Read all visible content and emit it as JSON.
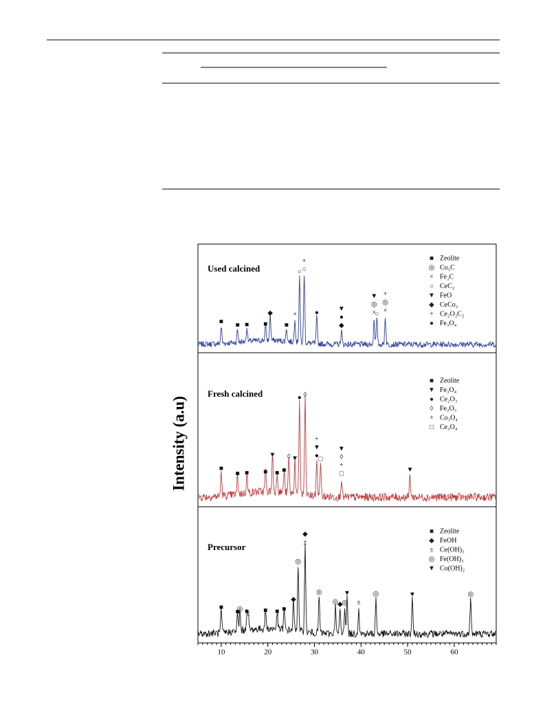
{
  "figure": {
    "ylabel": "Intensity (a.u)",
    "xlim": [
      5,
      69
    ],
    "xticks": [
      10,
      20,
      30,
      40,
      50,
      60
    ],
    "panels": [
      {
        "title": "Used calcined",
        "color": "#2f3d9c",
        "legend": [
          {
            "marker": "■",
            "label": "Zeolite"
          },
          {
            "marker": "◎",
            "label": "Co₃C"
          },
          {
            "marker": "×",
            "label": "Fe₃C"
          },
          {
            "marker": "○",
            "label": "CeC₂"
          },
          {
            "marker": "▼",
            "label": "FeO"
          },
          {
            "marker": "◆",
            "label": "CeCo₂"
          },
          {
            "marker": "+",
            "label": "Ce₂O₂C₂"
          },
          {
            "marker": "●",
            "label": "Fe₃O₄"
          }
        ],
        "markers": [
          {
            "x": 10,
            "legend": 0
          },
          {
            "x": 13.5,
            "legend": 0
          },
          {
            "x": 15.5,
            "legend": 0
          },
          {
            "x": 19.5,
            "legend": 0
          },
          {
            "x": 24,
            "legend": 0
          },
          {
            "x": 20.5,
            "legend": 5
          },
          {
            "x": 25.8,
            "legend": 6
          },
          {
            "x": 26.8,
            "legend": 3
          },
          {
            "x": 27.8,
            "legend": 3
          },
          {
            "x": 27.8,
            "legend": 6
          },
          {
            "x": 30.5,
            "legend": 7
          },
          {
            "x": 35.8,
            "legend": 5
          },
          {
            "x": 35.8,
            "legend": 7
          },
          {
            "x": 35.8,
            "legend": 4
          },
          {
            "x": 42.8,
            "legend": 2
          },
          {
            "x": 42.8,
            "legend": 1
          },
          {
            "x": 42.8,
            "legend": 4
          },
          {
            "x": 45.2,
            "legend": 2
          },
          {
            "x": 45.2,
            "legend": 1
          },
          {
            "x": 45.2,
            "legend": 6
          },
          {
            "x": 43.4,
            "legend": 3
          }
        ]
      },
      {
        "title": "Fresh calcined",
        "color": "#c03a3c",
        "legend": [
          {
            "marker": "■",
            "label": "Zeolite"
          },
          {
            "marker": "▼",
            "label": "Fe₃O₄"
          },
          {
            "marker": "●",
            "label": "Ce₂O₃"
          },
          {
            "marker": "◊",
            "label": "Fe₂O₃"
          },
          {
            "marker": "+",
            "label": "Co₃O₄"
          },
          {
            "marker": "□",
            "label": "Ce₃O₄"
          }
        ],
        "markers": [
          {
            "x": 10,
            "legend": 0
          },
          {
            "x": 13.5,
            "legend": 0
          },
          {
            "x": 15.5,
            "legend": 0
          },
          {
            "x": 19.5,
            "legend": 0
          },
          {
            "x": 22,
            "legend": 0
          },
          {
            "x": 23.5,
            "legend": 0
          },
          {
            "x": 21,
            "legend": 1
          },
          {
            "x": 24.5,
            "legend": 3
          },
          {
            "x": 25.8,
            "legend": 1
          },
          {
            "x": 26.8,
            "legend": 2
          },
          {
            "x": 28,
            "legend": 3
          },
          {
            "x": 30.5,
            "legend": 2
          },
          {
            "x": 30.5,
            "legend": 1
          },
          {
            "x": 30.5,
            "legend": 4
          },
          {
            "x": 31.3,
            "legend": 5
          },
          {
            "x": 35.8,
            "legend": 5
          },
          {
            "x": 35.8,
            "legend": 4
          },
          {
            "x": 35.8,
            "legend": 3
          },
          {
            "x": 35.8,
            "legend": 1
          },
          {
            "x": 50.5,
            "legend": 1
          }
        ]
      },
      {
        "title": "Precursor",
        "color": "#111111",
        "legend": [
          {
            "marker": "■",
            "label": "Zeolite"
          },
          {
            "marker": "◆",
            "label": "FeOH"
          },
          {
            "marker": "±",
            "label": "Ce(OH)₃"
          },
          {
            "marker": "◎",
            "label": "Fe(OH)₃"
          },
          {
            "marker": "▼",
            "label": "Co(OH)₂"
          }
        ],
        "markers": [
          {
            "x": 10,
            "legend": 0
          },
          {
            "x": 13.5,
            "legend": 0
          },
          {
            "x": 15.5,
            "legend": 0
          },
          {
            "x": 19.5,
            "legend": 0
          },
          {
            "x": 22,
            "legend": 0
          },
          {
            "x": 23.5,
            "legend": 0
          },
          {
            "x": 14,
            "legend": 3
          },
          {
            "x": 15.8,
            "legend": 2
          },
          {
            "x": 25.5,
            "legend": 1
          },
          {
            "x": 26.5,
            "legend": 3
          },
          {
            "x": 28,
            "legend": 2
          },
          {
            "x": 28,
            "legend": 1
          },
          {
            "x": 31,
            "legend": 3
          },
          {
            "x": 34.5,
            "legend": 3
          },
          {
            "x": 35.5,
            "legend": 1
          },
          {
            "x": 36.5,
            "legend": 3
          },
          {
            "x": 37,
            "legend": 4
          },
          {
            "x": 39.5,
            "legend": 2
          },
          {
            "x": 43.2,
            "legend": 3
          },
          {
            "x": 51,
            "legend": 4
          },
          {
            "x": 63.5,
            "legend": 3
          }
        ]
      }
    ]
  }
}
